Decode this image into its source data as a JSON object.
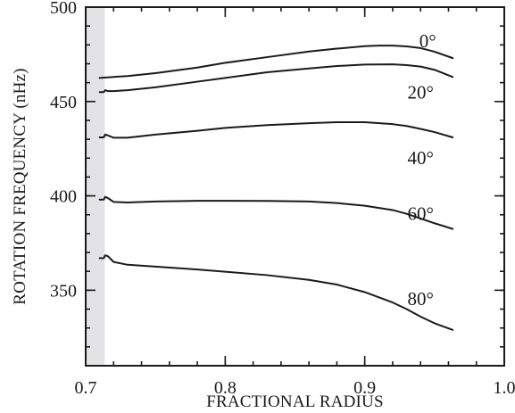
{
  "chart_data": {
    "type": "line",
    "xlabel": "FRACTIONAL RADIUS",
    "ylabel": "ROTATION FREQUENCY (nHz)",
    "xlim": [
      0.7,
      1.0
    ],
    "ylim": [
      310,
      500
    ],
    "xticks": [
      {
        "value": 0.7,
        "label": "0.7"
      },
      {
        "value": 0.8,
        "label": "0.8"
      },
      {
        "value": 0.9,
        "label": "0.9"
      },
      {
        "value": 1.0,
        "label": "1.0"
      }
    ],
    "yticks": [
      {
        "value": 350,
        "label": "350"
      },
      {
        "value": 400,
        "label": "400"
      },
      {
        "value": 450,
        "label": "450"
      },
      {
        "value": 500,
        "label": "500"
      }
    ],
    "shaded_region": {
      "x_from": 0.7,
      "x_to": 0.713,
      "color": "#e3e3e6"
    },
    "grid": false,
    "line_color": "#1a1a1a",
    "series": [
      {
        "name": "0°",
        "x": [
          0.71,
          0.73,
          0.75,
          0.78,
          0.8,
          0.83,
          0.86,
          0.88,
          0.9,
          0.91,
          0.92,
          0.93,
          0.94,
          0.95,
          0.963
        ],
        "y": [
          462.5,
          463.5,
          465,
          468,
          470.5,
          473.5,
          476.5,
          478,
          479.3,
          479.6,
          479.6,
          479.2,
          478.3,
          476.4,
          473
        ]
      },
      {
        "name": "20°",
        "x": [
          0.71,
          0.713,
          0.714,
          0.716,
          0.72,
          0.73,
          0.75,
          0.78,
          0.8,
          0.83,
          0.86,
          0.88,
          0.9,
          0.92,
          0.93,
          0.94,
          0.95,
          0.963
        ],
        "y": [
          455,
          455,
          456,
          455.5,
          455.5,
          456,
          457.5,
          460.5,
          462.5,
          465.5,
          467.5,
          468.8,
          469.6,
          469.7,
          469.3,
          468.5,
          466.8,
          463
        ]
      },
      {
        "name": "40°",
        "x": [
          0.71,
          0.713,
          0.714,
          0.716,
          0.72,
          0.73,
          0.75,
          0.78,
          0.8,
          0.83,
          0.86,
          0.88,
          0.9,
          0.92,
          0.93,
          0.94,
          0.95,
          0.963
        ],
        "y": [
          431,
          431,
          432.5,
          432,
          430.8,
          430.8,
          432.5,
          434.5,
          436,
          437.5,
          438.5,
          439,
          439,
          438,
          437,
          435.5,
          433.8,
          431
        ]
      },
      {
        "name": "60°",
        "x": [
          0.71,
          0.713,
          0.714,
          0.716,
          0.72,
          0.73,
          0.75,
          0.78,
          0.8,
          0.83,
          0.86,
          0.88,
          0.9,
          0.92,
          0.93,
          0.94,
          0.95,
          0.963
        ],
        "y": [
          398,
          398,
          399.5,
          398.8,
          396.8,
          396.5,
          397,
          397.4,
          397.4,
          397.3,
          397,
          396.2,
          394.8,
          392.5,
          390.5,
          388,
          385.5,
          382.5
        ]
      },
      {
        "name": "80°",
        "x": [
          0.71,
          0.713,
          0.714,
          0.716,
          0.72,
          0.73,
          0.75,
          0.78,
          0.8,
          0.83,
          0.86,
          0.88,
          0.9,
          0.92,
          0.93,
          0.94,
          0.95,
          0.963
        ],
        "y": [
          367,
          367,
          368.5,
          368,
          365,
          363.5,
          362.5,
          361,
          359.8,
          358,
          355.5,
          353,
          349,
          343.5,
          340,
          336,
          332.5,
          329
        ]
      }
    ]
  }
}
